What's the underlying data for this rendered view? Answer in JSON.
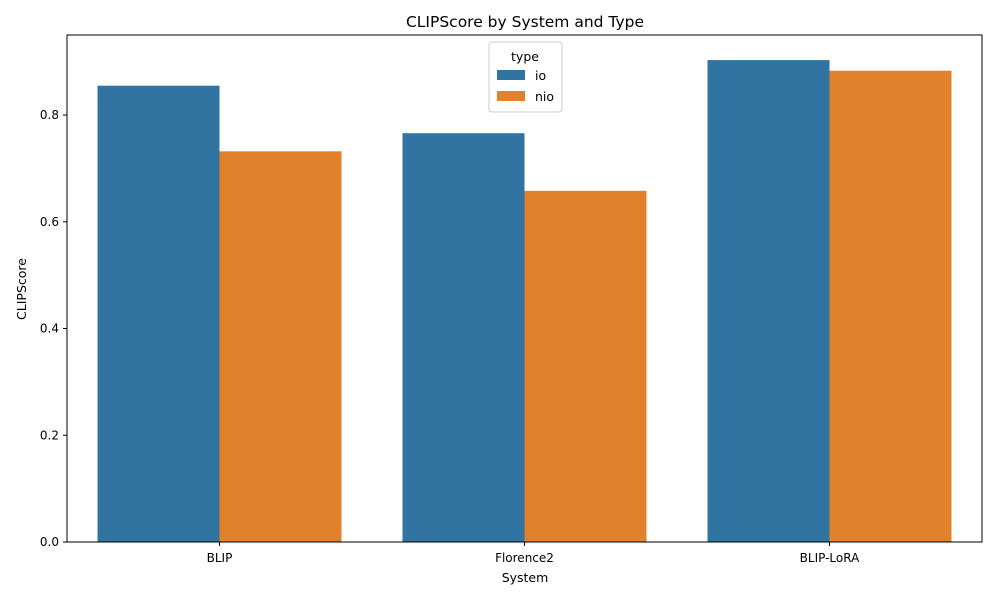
{
  "chart_data": {
    "type": "bar",
    "title": "CLIPScore by System and Type",
    "xlabel": "System",
    "ylabel": "CLIPScore",
    "categories": [
      "BLIP",
      "Florence2",
      "BLIP-LoRA"
    ],
    "series": [
      {
        "name": "io",
        "color": "#3274a1",
        "values": [
          0.855,
          0.766,
          0.903
        ]
      },
      {
        "name": "nio",
        "color": "#e1812c",
        "values": [
          0.732,
          0.658,
          0.883
        ]
      }
    ],
    "ylim": [
      0,
      0.95
    ],
    "yticks": [
      0.0,
      0.2,
      0.4,
      0.6,
      0.8
    ],
    "ytick_labels": [
      "0.0",
      "0.2",
      "0.4",
      "0.6",
      "0.8"
    ],
    "grid": false,
    "legend": {
      "title": "type",
      "placement": "top-center"
    }
  }
}
